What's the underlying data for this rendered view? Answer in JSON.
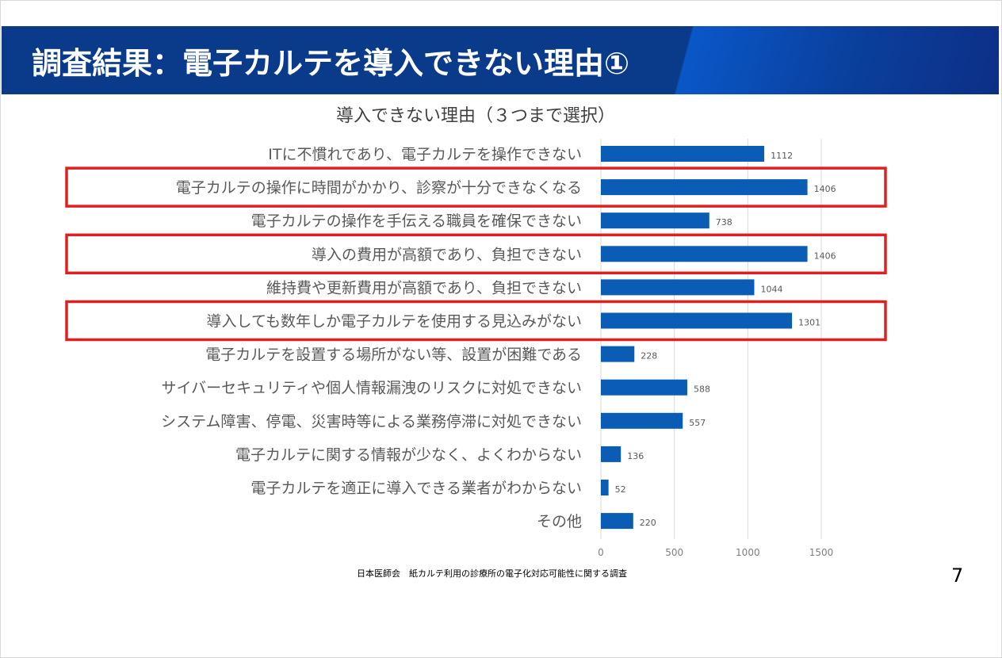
{
  "header": {
    "title": "調査結果：電子カルテを導入できない理由①"
  },
  "source": "日本医師会　紙カルテ利用の診療所の電子化対応可能性に関する調査",
  "page_number": "7",
  "colors": {
    "header": "#0a3a8a",
    "bar": "#0b5cb5",
    "highlight": "#e02020"
  },
  "chart_data": {
    "type": "bar",
    "orientation": "horizontal",
    "title": "導入できない理由（３つまで選択）",
    "categories": [
      "ITに不慣れであり、電子カルテを操作できない",
      "電子カルテの操作に時間がかかり、診察が十分できなくなる",
      "電子カルテの操作を手伝える職員を確保できない",
      "導入の費用が高額であり、負担できない",
      "維持費や更新費用が高額であり、負担できない",
      "導入しても数年しか電子カルテを使用する見込みがない",
      "電子カルテを設置する場所がない等、設置が困難である",
      "サイバーセキュリティや個人情報漏洩のリスクに対処できない",
      "システム障害、停電、災害時等による業務停滞に対処できない",
      "電子カルテに関する情報が少なく、よくわからない",
      "電子カルテを適正に導入できる業者がわからない",
      "その他"
    ],
    "values": [
      1112,
      1406,
      738,
      1406,
      1044,
      1301,
      228,
      588,
      557,
      136,
      52,
      220
    ],
    "highlighted": [
      1,
      3,
      5
    ],
    "xlim": [
      0,
      1500
    ],
    "ticks": [
      "0",
      "500",
      "1000",
      "1500"
    ],
    "grid": true,
    "data_labels": true
  }
}
